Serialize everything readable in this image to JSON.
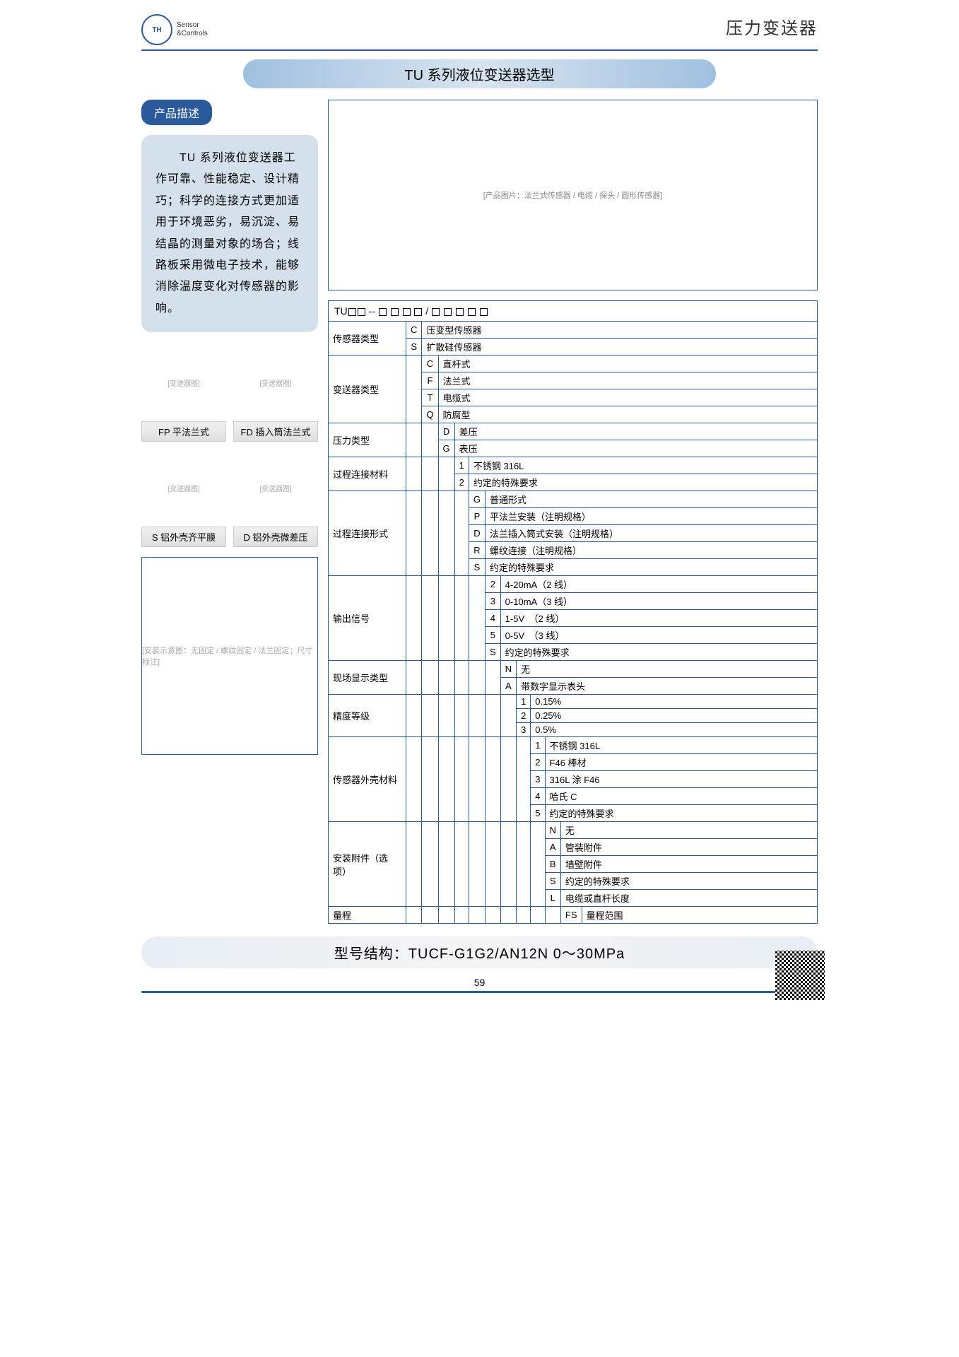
{
  "header": {
    "logo_text1": "Sensor",
    "logo_text2": "&Controls",
    "category": "压力变送器"
  },
  "title": "TU 系列液位变送器选型",
  "section_label": "产品描述",
  "description": "　　TU 系列液位变送器工作可靠、性能稳定、设计精巧；科学的连接方式更加适用于环境恶劣，易沉淀、易结晶的测量对象的场合；线路板采用微电子技术，能够消除温度变化对传感器的影响。",
  "product_image_placeholder": "[产品图片：法兰式传感器 / 电缆 / 探头 / 圆形传感器]",
  "types": [
    {
      "img": "[变送器图]",
      "label": "FP 平法兰式"
    },
    {
      "img": "[变送器图]",
      "label": "FD 插入筒法兰式"
    },
    {
      "img": "[变送器图]",
      "label": "S 铝外壳齐平膜"
    },
    {
      "img": "[变送器图]",
      "label": "D 铝外壳微差压"
    }
  ],
  "diagram_placeholder": "[安装示意图：无固定 / 螺纹固定 / 法兰固定；尺寸标注]",
  "spec": {
    "model_prefix": "TU",
    "rows": [
      {
        "param": "传感器类型",
        "indent": 0,
        "opts": [
          [
            "C",
            "压变型传感器"
          ],
          [
            "S",
            "扩散硅传感器"
          ]
        ]
      },
      {
        "param": "变送器类型",
        "indent": 1,
        "opts": [
          [
            "C",
            "直杆式"
          ],
          [
            "F",
            "法兰式"
          ],
          [
            "T",
            "电缆式"
          ],
          [
            "Q",
            "防腐型"
          ]
        ]
      },
      {
        "param": "压力类型",
        "indent": 2,
        "opts": [
          [
            "D",
            "差压"
          ],
          [
            "G",
            "表压"
          ]
        ]
      },
      {
        "param": "过程连接材料",
        "indent": 3,
        "opts": [
          [
            "1",
            "不锈钢 316L"
          ],
          [
            "2",
            "约定的特殊要求"
          ]
        ]
      },
      {
        "param": "过程连接形式",
        "indent": 4,
        "opts": [
          [
            "G",
            "普通形式"
          ],
          [
            "P",
            "平法兰安装（注明规格）"
          ],
          [
            "D",
            "法兰插入筒式安装（注明规格）"
          ],
          [
            "R",
            "螺纹连接（注明规格）"
          ],
          [
            "S",
            "约定的特殊要求"
          ]
        ]
      },
      {
        "param": "输出信号",
        "indent": 5,
        "opts": [
          [
            "2",
            "4-20mA（2 线）"
          ],
          [
            "3",
            "0-10mA（3 线）"
          ],
          [
            "4",
            "1-5V　（2 线）"
          ],
          [
            "5",
            "0-5V　（3 线）"
          ],
          [
            "S",
            "约定的特殊要求"
          ]
        ]
      },
      {
        "param": "现场显示类型",
        "indent": 6,
        "opts": [
          [
            "N",
            "无"
          ],
          [
            "A",
            "带数字显示表头"
          ]
        ]
      },
      {
        "param": "精度等级",
        "indent": 7,
        "opts": [
          [
            "1",
            "0.15%"
          ],
          [
            "2",
            "0.25%"
          ],
          [
            "3",
            "0.5%"
          ]
        ]
      },
      {
        "param": "传感器外壳材料",
        "indent": 8,
        "opts": [
          [
            "1",
            "不锈钢 316L"
          ],
          [
            "2",
            "F46 棒材"
          ],
          [
            "3",
            "316L 涂 F46"
          ],
          [
            "4",
            "哈氏 C"
          ],
          [
            "5",
            "约定的特殊要求"
          ]
        ]
      },
      {
        "param": "安装附件（选项）",
        "indent": 9,
        "opts": [
          [
            "N",
            "无"
          ],
          [
            "A",
            "管装附件"
          ],
          [
            "B",
            "墙壁附件"
          ],
          [
            "S",
            "约定的特殊要求"
          ],
          [
            "L",
            "电缆或直杆长度"
          ]
        ]
      },
      {
        "param": "量程",
        "indent": 10,
        "opts": [
          [
            "FS",
            "量程范围"
          ]
        ]
      }
    ]
  },
  "model_example": "型号结构：TUCF-G1G2/AN12N 0～30MPa",
  "page_number": "59"
}
